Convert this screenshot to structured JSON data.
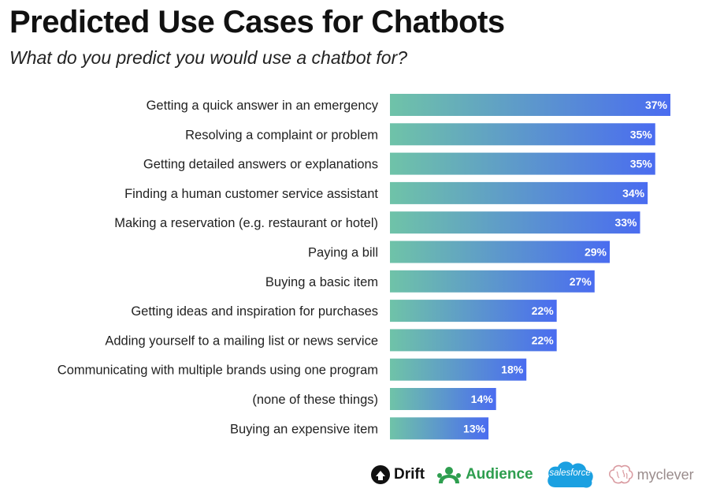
{
  "title": "Predicted Use Cases for Chatbots",
  "subtitle": "What do you predict you would use a chatbot for?",
  "colors": {
    "bar_start": "#6fc3a8",
    "bar_end": "#4a6cf0",
    "value_label": "#ffffff"
  },
  "chart_data": {
    "type": "bar",
    "orientation": "horizontal",
    "categories": [
      "Getting a quick answer in an emergency",
      "Resolving a complaint or problem",
      "Getting detailed answers or explanations",
      "Finding a human customer service assistant",
      "Making a reservation (e.g. restaurant or hotel)",
      "Paying a bill",
      "Buying a basic item",
      "Getting ideas and inspiration for purchases",
      "Adding yourself to a mailing list or news service",
      "Communicating with multiple brands using one program",
      "(none of these things)",
      "Buying an expensive item"
    ],
    "values": [
      37,
      35,
      35,
      34,
      33,
      29,
      27,
      22,
      22,
      18,
      14,
      13
    ],
    "value_labels": [
      "37%",
      "35%",
      "35%",
      "34%",
      "33%",
      "29%",
      "27%",
      "22%",
      "22%",
      "18%",
      "14%",
      "13%"
    ],
    "unit": "%",
    "grid": false,
    "legend": "none"
  },
  "logos": {
    "drift": {
      "text": "Drift",
      "icon": "drift-logo-icon"
    },
    "audience": {
      "text": "Audience",
      "icon": "audience-logo-icon"
    },
    "salesforce": {
      "text": "salesforce",
      "icon": "cloud-icon"
    },
    "myclever": {
      "text": "myclever",
      "icon": "brain-icon"
    }
  }
}
